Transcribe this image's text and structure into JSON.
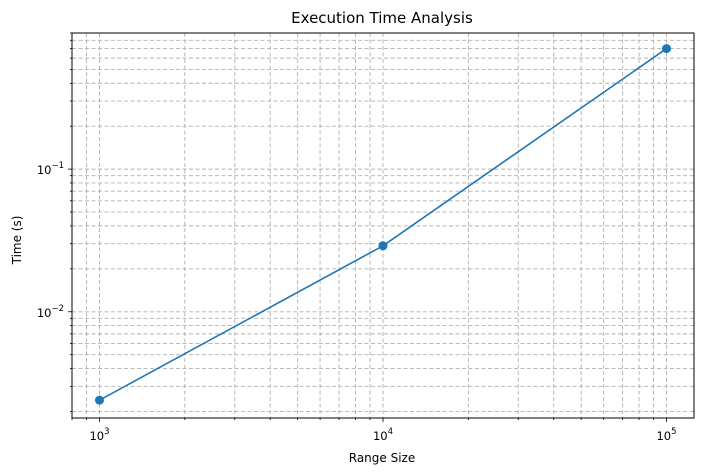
{
  "chart_data": {
    "type": "line",
    "title": "Execution Time Analysis",
    "xlabel": "Range Size",
    "ylabel": "Time (s)",
    "xscale": "log",
    "yscale": "log",
    "xlim": [
      800,
      125000
    ],
    "ylim": [
      0.0018,
      0.9
    ],
    "grid": true,
    "grid_minor": true,
    "legend": "none",
    "x_ticks": [
      {
        "value": 1000,
        "base": "10",
        "exp": "3"
      },
      {
        "value": 10000,
        "base": "10",
        "exp": "4"
      },
      {
        "value": 100000,
        "base": "10",
        "exp": "5"
      }
    ],
    "y_ticks": [
      {
        "value": 0.01,
        "base": "10",
        "exp": "−2"
      },
      {
        "value": 0.1,
        "base": "10",
        "exp": "−1"
      }
    ],
    "series": [
      {
        "x": [
          1000,
          10000,
          100000
        ],
        "y": [
          0.0024,
          0.029,
          0.7
        ],
        "color": "#1f77b4",
        "marker": "circle"
      }
    ]
  }
}
